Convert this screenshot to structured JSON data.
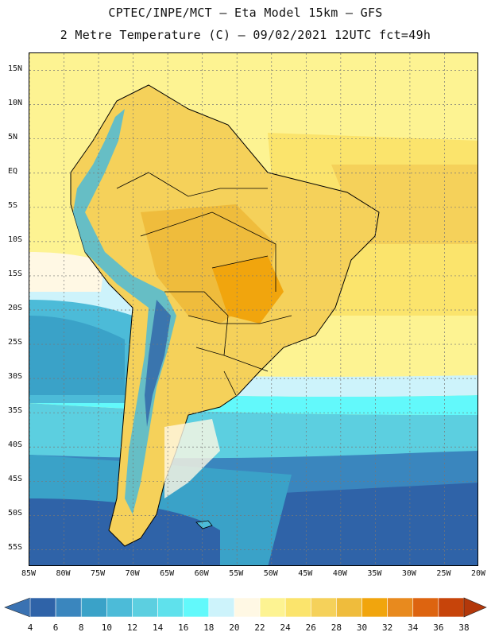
{
  "header": {
    "line1": "CPTEC/INPE/MCT –  Eta Model 15km – GFS",
    "line2": "2 Metre Temperature (C) – 09/02/2021 12UTC fct=49h"
  },
  "map": {
    "lat_labels": [
      "15N",
      "10N",
      "5N",
      "EQ",
      "5S",
      "10S",
      "15S",
      "20S",
      "25S",
      "30S",
      "35S",
      "40S",
      "45S",
      "50S",
      "55S"
    ],
    "lon_labels": [
      "85W",
      "80W",
      "75W",
      "70W",
      "65W",
      "60W",
      "55W",
      "50W",
      "45W",
      "40W",
      "35W",
      "30W",
      "25W",
      "20W"
    ],
    "grid": {
      "lon_min": -85,
      "lon_max": -20,
      "lat_min": -57.5,
      "lat_max": 17.5,
      "step": 5
    }
  },
  "colorbar": {
    "labels": [
      "4",
      "6",
      "8",
      "10",
      "12",
      "14",
      "16",
      "18",
      "20",
      "22",
      "24",
      "26",
      "28",
      "30",
      "32",
      "34",
      "36",
      "38"
    ],
    "bins": [
      {
        "value": "<4",
        "color": "#3a72b2"
      },
      {
        "value": "4-6",
        "color": "#2f63a8"
      },
      {
        "value": "6-8",
        "color": "#3a86be"
      },
      {
        "value": "8-10",
        "color": "#3aa2c8"
      },
      {
        "value": "10-12",
        "color": "#4cbbd8"
      },
      {
        "value": "12-14",
        "color": "#5ccfe0"
      },
      {
        "value": "14-16",
        "color": "#5fe1ec"
      },
      {
        "value": "16-18",
        "color": "#62f9fb"
      },
      {
        "value": "18-20",
        "color": "#cdf3fb"
      },
      {
        "value": "20-22",
        "color": "#fff8e4"
      },
      {
        "value": "22-24",
        "color": "#fdf392"
      },
      {
        "value": "24-26",
        "color": "#fbe46c"
      },
      {
        "value": "26-28",
        "color": "#f5d15a"
      },
      {
        "value": "28-30",
        "color": "#efbc3c"
      },
      {
        "value": "30-32",
        "color": "#f1a50d"
      },
      {
        "value": "32-34",
        "color": "#e88a1e"
      },
      {
        "value": "34-36",
        "color": "#dd6410"
      },
      {
        "value": "36-38",
        "color": "#c7440a"
      },
      {
        "value": ">38",
        "color": "#b3380a"
      }
    ]
  }
}
